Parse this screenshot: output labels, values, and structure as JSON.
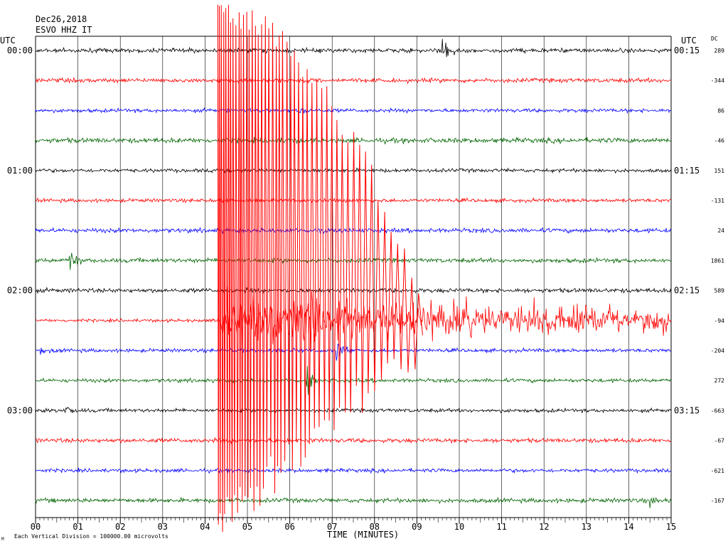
{
  "header": {
    "date": "Dec26,2018",
    "station": "ESVO HHZ IT",
    "left_utc": "UTC",
    "right_utc": "UTC",
    "dc_label": "DC"
  },
  "footer": {
    "xlabel": "TIME (MINUTES)",
    "note": "Each Vertical Division = 100000.00 microvolts",
    "corner_mark": "M"
  },
  "colors": {
    "black": "#000000",
    "red": "#ff0000",
    "blue": "#0000ff",
    "green": "#006400",
    "grid": "#000000"
  },
  "chart_data": {
    "type": "line",
    "subtype": "helicorder",
    "title": "",
    "xlabel": "TIME (MINUTES)",
    "ylabel": "",
    "xlim": [
      0,
      15
    ],
    "x_ticks": [
      "00",
      "01",
      "02",
      "03",
      "04",
      "05",
      "06",
      "07",
      "08",
      "09",
      "10",
      "11",
      "12",
      "13",
      "14",
      "15"
    ],
    "grid": true,
    "rows_per_hour": 4,
    "minutes_per_row": 15,
    "line_color_cycle": [
      "black",
      "red",
      "blue",
      "green"
    ],
    "rows": [
      {
        "left": "00:00",
        "right": "00:15",
        "dc": "289",
        "color": "black",
        "noise": 0.35,
        "events": [
          {
            "start": 9.6,
            "dur": 0.5,
            "amp": 4.5,
            "decay": 1.5
          }
        ]
      },
      {
        "left": "",
        "right": "",
        "dc": "-344",
        "color": "red",
        "noise": 0.35,
        "events": []
      },
      {
        "left": "",
        "right": "",
        "dc": "86",
        "color": "blue",
        "noise": 0.3,
        "events": [
          {
            "start": 6.2,
            "dur": 0.3,
            "amp": 1.2,
            "decay": 1
          }
        ]
      },
      {
        "left": "",
        "right": "",
        "dc": "-46",
        "color": "green",
        "noise": 0.4,
        "events": []
      },
      {
        "left": "01:00",
        "right": "01:15",
        "dc": "151",
        "color": "black",
        "noise": 0.3,
        "events": []
      },
      {
        "left": "",
        "right": "",
        "dc": "-131",
        "color": "red",
        "noise": 0.3,
        "events": []
      },
      {
        "left": "",
        "right": "",
        "dc": "24",
        "color": "blue",
        "noise": 0.35,
        "events": []
      },
      {
        "left": "",
        "right": "",
        "dc": "1861",
        "color": "green",
        "noise": 0.35,
        "events": [
          {
            "start": 0.8,
            "dur": 0.5,
            "amp": 2.5,
            "decay": 1.2
          }
        ]
      },
      {
        "left": "02:00",
        "right": "02:15",
        "dc": "589",
        "color": "black",
        "noise": 0.35,
        "events": []
      },
      {
        "left": "",
        "right": "",
        "dc": "-94",
        "color": "red",
        "noise": 0.25,
        "events": [
          {
            "start": 4.35,
            "dur": 10.6,
            "amp": 4.0,
            "decay": 0.25
          }
        ]
      },
      {
        "left": "",
        "right": "",
        "dc": "-204",
        "color": "blue",
        "noise": 0.3,
        "events": [
          {
            "start": 7.1,
            "dur": 0.7,
            "amp": 2.5,
            "decay": 1.5
          },
          {
            "start": 0.1,
            "dur": 0.5,
            "amp": 0.8,
            "decay": 1
          }
        ]
      },
      {
        "left": "",
        "right": "",
        "dc": "272",
        "color": "green",
        "noise": 0.3,
        "events": [
          {
            "start": 6.4,
            "dur": 0.6,
            "amp": 2.5,
            "decay": 1.5
          }
        ]
      },
      {
        "left": "03:00",
        "right": "03:15",
        "dc": "-663",
        "color": "black",
        "noise": 0.3,
        "events": [
          {
            "start": 0.7,
            "dur": 0.4,
            "amp": 1.5,
            "decay": 1.2
          }
        ]
      },
      {
        "left": "",
        "right": "",
        "dc": "-67",
        "color": "red",
        "noise": 0.35,
        "events": []
      },
      {
        "left": "",
        "right": "",
        "dc": "-621",
        "color": "blue",
        "noise": 0.3,
        "events": []
      },
      {
        "left": "",
        "right": "",
        "dc": "-167",
        "color": "green",
        "noise": 0.35,
        "events": [
          {
            "start": 14.5,
            "dur": 0.45,
            "amp": 1.5,
            "decay": 1
          }
        ]
      }
    ],
    "large_event": {
      "color": "red",
      "start_minute": 4.3,
      "end_minute": 9.2,
      "description_on_chart": ""
    }
  }
}
